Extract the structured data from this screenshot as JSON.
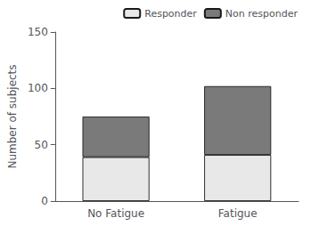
{
  "chart_data": {
    "type": "bar",
    "stacked": true,
    "categories": [
      "No Fatigue",
      "Fatigue"
    ],
    "series": [
      {
        "name": "Responder",
        "color": "#e8e8e8",
        "values": [
          39,
          41
        ]
      },
      {
        "name": "Non responder",
        "color": "#7a7a7a",
        "values": [
          36,
          61
        ]
      }
    ],
    "ylabel": "Number of subjects",
    "ylim": [
      0,
      150
    ],
    "yticks": [
      0,
      50,
      100,
      150
    ],
    "grid": false,
    "legend": "upper right"
  }
}
